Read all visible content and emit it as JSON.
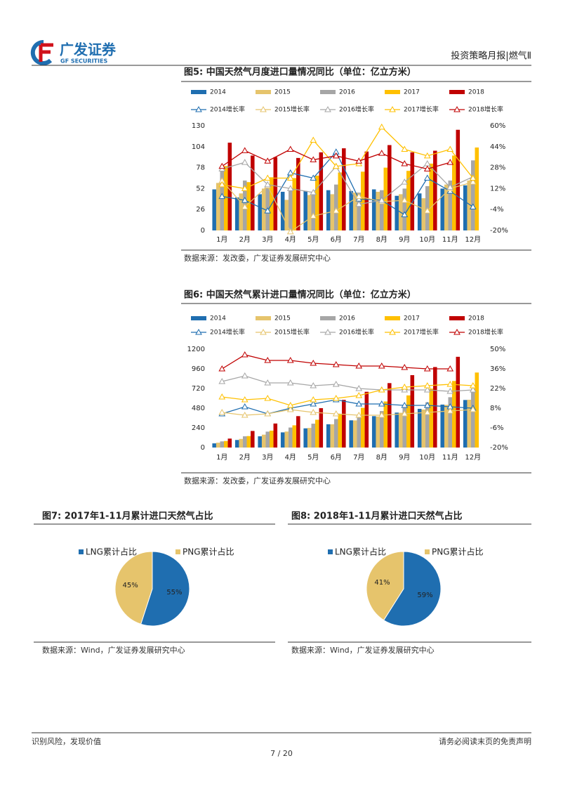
{
  "header": {
    "brand": "广发证券",
    "brand_en": "GF SECURITIES",
    "report": "投资策略月报|燃气Ⅱ"
  },
  "footer": {
    "left": "识别风险，发现价值",
    "page": "7 / 20",
    "right": "请务必阅读末页的免责声明"
  },
  "chart_data": [
    {
      "type": "bar",
      "title": "图5:  中国天然气月度进口量情况同比（单位：亿立方米）",
      "source": "数据来源：发改委，广发证券发展研究中心",
      "categories": [
        "1月",
        "2月",
        "3月",
        "4月",
        "5月",
        "6月",
        "7月",
        "8月",
        "9月",
        "10月",
        "11月",
        "12月"
      ],
      "ylim": [
        0,
        130
      ],
      "yticks": [
        0,
        26,
        52,
        78,
        104,
        130
      ],
      "y2lim": [
        -20,
        60
      ],
      "y2ticks": [
        {
          "value": 60,
          "label": "60%"
        },
        {
          "value": 44,
          "label": "44%"
        },
        {
          "value": 28,
          "label": "28%"
        },
        {
          "value": 12,
          "label": "12%"
        },
        {
          "value": -4,
          "label": "-4%"
        },
        {
          "value": -20,
          "label": "-20%"
        }
      ],
      "series": [
        {
          "name": "2014",
          "color": "#1f6eb0",
          "values": [
            51,
            41,
            45,
            48,
            49,
            50,
            49,
            51,
            43,
            46,
            52,
            56
          ]
        },
        {
          "name": "2015",
          "color": "#e6c46c",
          "values": [
            59,
            46,
            52,
            38,
            44,
            45,
            47,
            48,
            45,
            40,
            57,
            62
          ]
        },
        {
          "name": "2016",
          "color": "#a6a6a6",
          "values": [
            75,
            62,
            57,
            50,
            47,
            57,
            47,
            50,
            52,
            55,
            62,
            87
          ]
        },
        {
          "name": "2017",
          "color": "#ffc000",
          "values": [
            80,
            60,
            66,
            65,
            68,
            72,
            73,
            78,
            74,
            83,
            93,
            103
          ]
        },
        {
          "name": "2018",
          "color": "#c00000",
          "values": [
            109,
            93,
            91,
            90,
            97,
            102,
            98,
            106,
            97,
            99,
            125,
            null
          ]
        },
        {
          "name": "2014增长率",
          "color": "#1f6eb0",
          "axis": "y2",
          "values": [
            6,
            3,
            -5,
            24,
            20,
            40,
            4,
            3,
            -8,
            20,
            10,
            -2
          ]
        },
        {
          "name": "2015增长率",
          "color": "#e6c46c",
          "axis": "y2",
          "values": [
            18,
            -2,
            14,
            -21,
            -9,
            -5,
            6,
            2,
            3,
            -5,
            12,
            17
          ]
        },
        {
          "name": "2016增长率",
          "color": "#a6a6a6",
          "axis": "y2",
          "values": [
            27,
            32,
            15,
            12,
            9,
            29,
            0,
            3,
            17,
            31,
            13,
            21
          ]
        },
        {
          "name": "2017增长率",
          "color": "#ffc000",
          "axis": "y2",
          "values": [
            15,
            12,
            20,
            20,
            49,
            29,
            31,
            59,
            42,
            37,
            42,
            20
          ]
        },
        {
          "name": "2018增长率",
          "color": "#c00000",
          "axis": "y2",
          "values": [
            29,
            41,
            33,
            42,
            34,
            37,
            33,
            39,
            31,
            27,
            32,
            null
          ]
        }
      ]
    },
    {
      "type": "bar",
      "title": "图6:  中国天然气累计进口量情况同比（单位：亿立方米）",
      "source": "数据来源：发改委，广发证券发展研究中心",
      "categories": [
        "1月",
        "2月",
        "3月",
        "4月",
        "5月",
        "6月",
        "7月",
        "8月",
        "9月",
        "10月",
        "11月",
        "12月"
      ],
      "ylim": [
        0,
        1200
      ],
      "yticks": [
        0,
        240,
        480,
        720,
        960,
        1200
      ],
      "y2lim": [
        -20,
        50
      ],
      "y2ticks": [
        {
          "value": 50,
          "label": "50%"
        },
        {
          "value": 36,
          "label": "36%"
        },
        {
          "value": 22,
          "label": "22%"
        },
        {
          "value": 8,
          "label": "8%"
        },
        {
          "value": -6,
          "label": "-6%"
        },
        {
          "value": -20,
          "label": "-20%"
        }
      ],
      "series": [
        {
          "name": "2014",
          "color": "#1f6eb0",
          "values": [
            51,
            92,
            137,
            185,
            234,
            284,
            332,
            383,
            426,
            472,
            524,
            580
          ]
        },
        {
          "name": "2015",
          "color": "#e6c46c",
          "values": [
            59,
            105,
            157,
            195,
            239,
            284,
            331,
            379,
            424,
            464,
            521,
            583
          ]
        },
        {
          "name": "2016",
          "color": "#a6a6a6",
          "values": [
            75,
            137,
            194,
            244,
            291,
            348,
            395,
            445,
            497,
            552,
            614,
            720
          ]
        },
        {
          "name": "2017",
          "color": "#ffc000",
          "values": [
            80,
            140,
            206,
            271,
            339,
            411,
            484,
            562,
            636,
            719,
            812,
            915
          ]
        },
        {
          "name": "2018",
          "color": "#c00000",
          "values": [
            109,
            202,
            293,
            383,
            480,
            582,
            680,
            786,
            883,
            982,
            1107,
            null
          ]
        },
        {
          "name": "2014增长率",
          "color": "#1f6eb0",
          "axis": "y2",
          "values": [
            4,
            9,
            4,
            8,
            11,
            14,
            11,
            11,
            10,
            10,
            9,
            8
          ]
        },
        {
          "name": "2015增长率",
          "color": "#e6c46c",
          "axis": "y2",
          "values": [
            5,
            3,
            4,
            7,
            5,
            4,
            3,
            3,
            4,
            5,
            6,
            7
          ]
        },
        {
          "name": "2016增长率",
          "color": "#a6a6a6",
          "axis": "y2",
          "values": [
            27,
            31,
            26,
            26,
            24,
            25,
            22,
            21,
            21,
            21,
            20,
            21
          ]
        },
        {
          "name": "2017增长率",
          "color": "#ffc000",
          "axis": "y2",
          "values": [
            16,
            14,
            15,
            10,
            14,
            15,
            17,
            21,
            23,
            24,
            25,
            24
          ]
        },
        {
          "name": "2018增长率",
          "color": "#c00000",
          "axis": "y2",
          "values": [
            36,
            46,
            42,
            42,
            40,
            39,
            38,
            38,
            37,
            36,
            36,
            null
          ]
        }
      ]
    },
    {
      "type": "pie",
      "title": "图7:  2017年1-11月累计进口天然气占比",
      "source": "数据来源：Wind，广发证券发展研究中心",
      "categories": [
        "LNG累计占比",
        "PNG累计占比"
      ],
      "values": [
        55,
        45
      ],
      "value_labels": [
        "55%",
        "45%"
      ],
      "colors": [
        "#1f6eb0",
        "#e6c46c"
      ]
    },
    {
      "type": "pie",
      "title": "图8:  2018年1-11月累计进口天然气占比",
      "source": "数据来源：Wind，广发证券发展研究中心",
      "categories": [
        "LNG累计占比",
        "PNG累计占比"
      ],
      "values": [
        59,
        41
      ],
      "value_labels": [
        "59%",
        "41%"
      ],
      "colors": [
        "#1f6eb0",
        "#e6c46c"
      ]
    }
  ]
}
